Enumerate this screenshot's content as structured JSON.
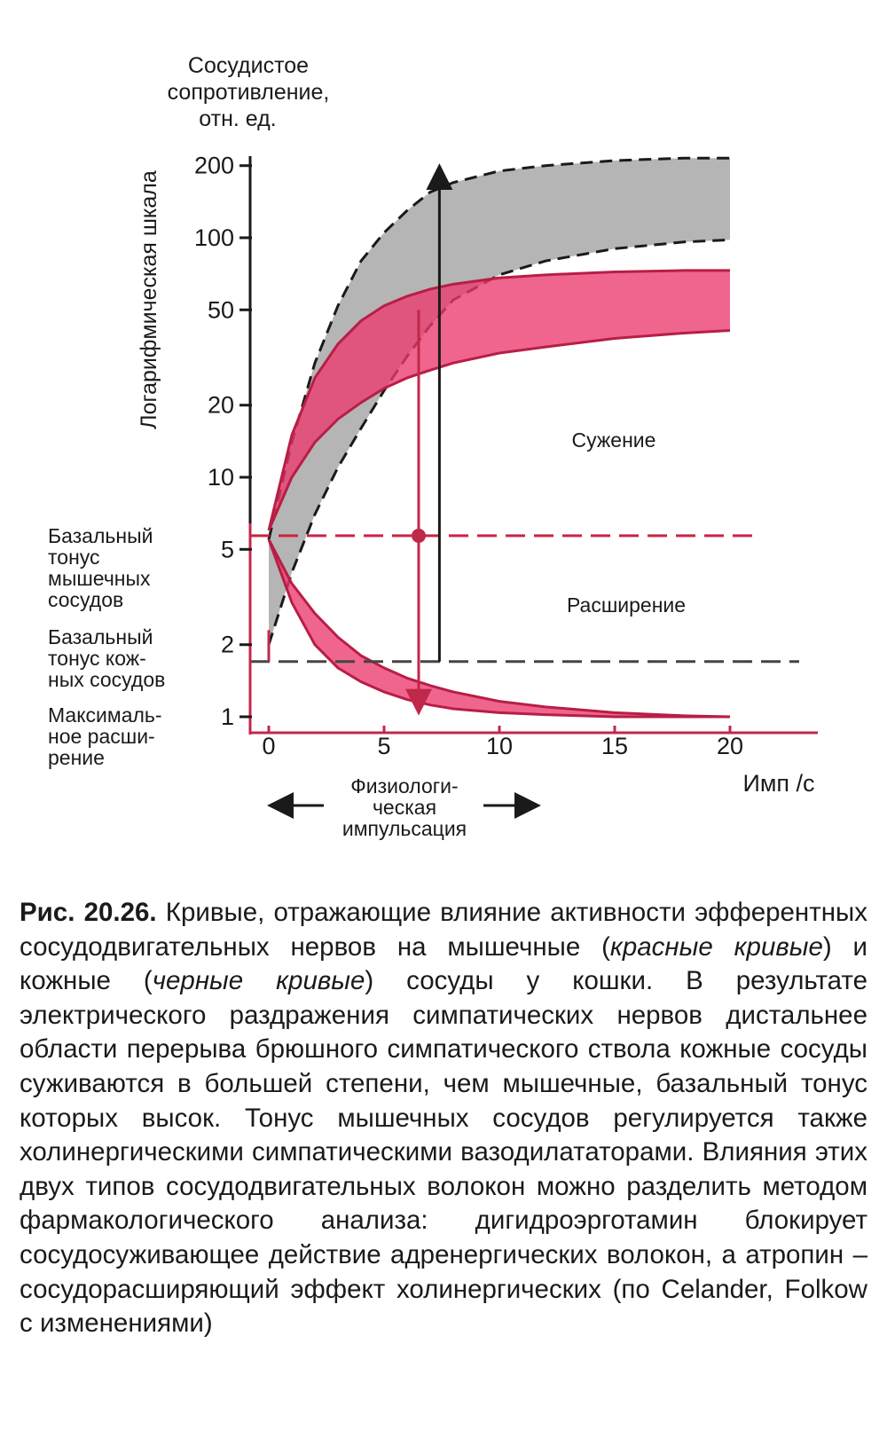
{
  "chart_data": {
    "type": "area",
    "ylabel": [
      "Сосудистое",
      "сопротивление,",
      "отн. ед."
    ],
    "ylabel_side": "Логарифмическая шкала",
    "xlabel": "Имп /с",
    "yscale": "log",
    "xlim": [
      -1,
      23
    ],
    "ylim": [
      1,
      230
    ],
    "x_ticks": [
      "0",
      "5",
      "10",
      "15",
      "20"
    ],
    "y_ticks": [
      "200",
      "100",
      "50",
      "20",
      "10",
      "5",
      "2",
      "1"
    ],
    "y_tick_values": [
      200,
      100,
      50,
      20,
      10,
      5,
      2,
      1
    ],
    "series": [
      {
        "kind": "constriction",
        "upper": {
          "x": [
            0,
            1,
            2,
            3,
            4,
            5,
            6,
            7,
            8,
            10,
            12,
            15,
            18,
            20
          ],
          "y": [
            5.5,
            14,
            30,
            52,
            80,
            105,
            130,
            155,
            170,
            190,
            200,
            210,
            215,
            215
          ]
        },
        "lower": {
          "x": [
            0,
            1,
            2,
            3,
            4,
            5,
            6,
            7,
            8,
            10,
            12,
            15,
            18,
            20
          ],
          "y": [
            2,
            4,
            7,
            11,
            16,
            23,
            32,
            43,
            55,
            70,
            80,
            90,
            96,
            98
          ]
        },
        "color": "#b3b3b3"
      },
      {
        "kind": "constriction",
        "upper": {
          "x": [
            0,
            1,
            2,
            3,
            4,
            5,
            6,
            7,
            8,
            10,
            12,
            15,
            18,
            20
          ],
          "y": [
            6,
            15,
            26,
            36,
            45,
            52,
            57,
            61,
            64,
            68,
            70,
            72,
            73,
            73
          ]
        },
        "lower": {
          "x": [
            0,
            1,
            2,
            3,
            4,
            5,
            6,
            7,
            8,
            10,
            12,
            15,
            18,
            20
          ],
          "y": [
            6,
            10,
            14,
            17.5,
            20.5,
            23.5,
            26,
            28,
            30,
            33,
            35,
            38,
            40,
            41
          ]
        },
        "color": "#e8366a"
      },
      {
        "kind": "dilation",
        "upper": {
          "x": [
            0,
            1,
            2,
            3,
            4,
            5,
            6,
            7,
            8,
            10,
            12,
            15,
            18,
            20
          ],
          "y": [
            5.5,
            3.6,
            2.7,
            2.15,
            1.8,
            1.6,
            1.45,
            1.35,
            1.27,
            1.16,
            1.1,
            1.04,
            1.01,
            1.0
          ]
        },
        "lower": {
          "x": [
            0,
            1,
            2,
            3,
            4,
            5,
            6,
            7,
            8,
            10,
            12,
            15,
            18,
            20
          ],
          "y": [
            5.5,
            3.0,
            2.0,
            1.6,
            1.4,
            1.27,
            1.18,
            1.12,
            1.08,
            1.04,
            1.02,
            1.0,
            1.0,
            1.0
          ]
        },
        "color": "#e8366a"
      }
    ],
    "reference_lines": [
      {
        "y": 5.7,
        "style": "dashed",
        "color": "#cc2244",
        "x_end": 21
      },
      {
        "y": 1.7,
        "style": "dashed",
        "color": "#444444",
        "x_end": 23
      }
    ],
    "marker": {
      "x": 6.5,
      "y": 5.7
    },
    "arrows": [
      {
        "x": 7.4,
        "y_from": 1.7,
        "y_to": 180,
        "color": "#1a1a1a"
      },
      {
        "x": 6.5,
        "y_from": 50,
        "y_to": 1.15,
        "color": "#c0284a"
      }
    ],
    "annotations": {
      "constriction": "Сужение",
      "dilation": "Расширение",
      "basal_muscle": [
        "Базальный",
        "тонус",
        "мышечных",
        "сосудов"
      ],
      "basal_skin": [
        "Базальный",
        "тонус кож-",
        "ных сосудов"
      ],
      "max_dilation": [
        "Максималь-",
        "ное расши-",
        "рение"
      ],
      "physio": [
        "Физиологи-",
        "ческая",
        "импульсация"
      ]
    }
  },
  "caption": {
    "label": "Рис. 20.26.",
    "part1": " Кривые, отражающие влияние активности эфферентных сосудодвигательных нервов на мышечные (",
    "red_curves": "красные кривые",
    "part2": ") и кожные (",
    "black_curves": "черные кривые",
    "part3": ") сосуды у кошки. В результате электрического раздражения симпатических нервов дистальнее области перерыва брюшного симпатического ствола кожные сосуды суживаются в большей степени, чем мышечные, базальный тонус которых высок. Тонус мышечных сосудов регулируется также холинергическими симпатическими вазодилататорами. Влияния этих двух типов сосудодвигательных волокон можно разделить методом фармакологического анализа: дигидроэрготамин блокирует сосудосуживающее действие адренергических волокон, а атропин – сосудорасширяющий эффект холинергических (по Celander, Folkow с изменениями)"
  }
}
